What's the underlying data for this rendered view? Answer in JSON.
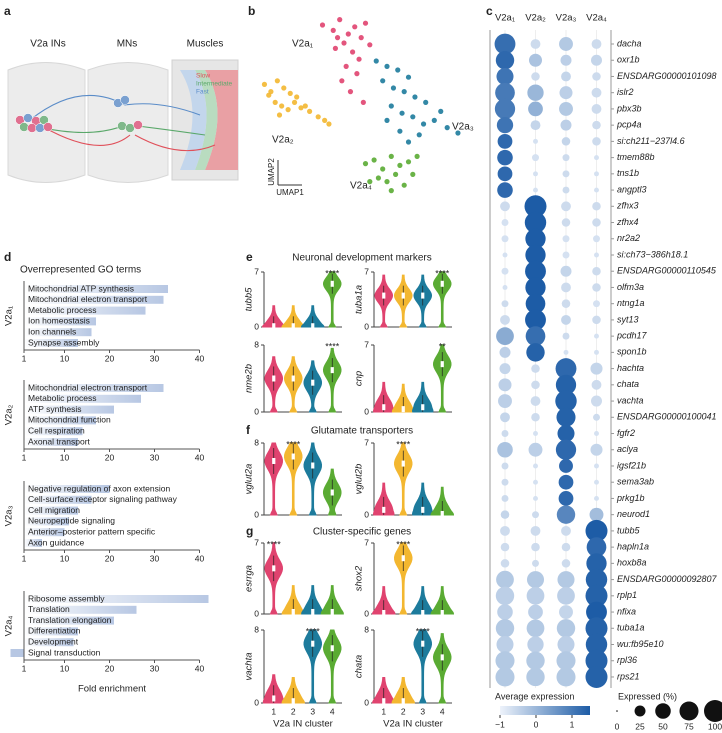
{
  "panel_letters": [
    "a",
    "b",
    "c",
    "d",
    "e",
    "f",
    "g"
  ],
  "schematic": {
    "labels": [
      "V2a INs",
      "MNs",
      "Muscles"
    ],
    "legend": [
      {
        "text": "Slow",
        "color": "#e0505a"
      },
      {
        "text": "Intermediate",
        "color": "#5aa86a"
      },
      {
        "text": "Fast",
        "color": "#5a8cc8"
      }
    ]
  },
  "violin_sections": [
    "Neuronal development markers",
    "Glutamate transporters",
    "Cluster-specific genes"
  ],
  "chart_data": [
    {
      "type": "scatter",
      "x_label": "UMAP1",
      "y_label": "UMAP2",
      "xlim": [
        0,
        100
      ],
      "ylim": [
        0,
        100
      ],
      "series": [
        {
          "name": "V2a₁",
          "color": "#e0436f",
          "x": [
            30,
            35,
            38,
            42,
            45,
            48,
            50,
            40,
            44,
            36,
            47,
            52,
            41,
            46,
            39,
            43,
            49,
            37
          ],
          "y": [
            95,
            92,
            98,
            90,
            94,
            88,
            96,
            85,
            80,
            82,
            76,
            84,
            72,
            68,
            64,
            58,
            52,
            88
          ]
        },
        {
          "name": "V2a₂",
          "color": "#f3b730",
          "x": [
            3,
            6,
            9,
            12,
            15,
            18,
            8,
            11,
            14,
            17,
            20,
            24,
            28,
            31,
            33,
            5,
            10,
            22
          ],
          "y": [
            62,
            58,
            64,
            60,
            57,
            55,
            52,
            50,
            48,
            52,
            49,
            47,
            44,
            42,
            40,
            56,
            45,
            50
          ]
        },
        {
          "name": "V2a₃",
          "color": "#1d7b9c",
          "x": [
            55,
            60,
            65,
            70,
            58,
            63,
            68,
            73,
            78,
            62,
            67,
            72,
            77,
            82,
            88,
            93,
            70,
            75,
            60,
            66,
            85
          ],
          "y": [
            75,
            72,
            70,
            66,
            64,
            60,
            58,
            55,
            52,
            50,
            46,
            44,
            40,
            42,
            38,
            35,
            30,
            34,
            42,
            36,
            47
          ]
        },
        {
          "name": "V2a₄",
          "color": "#5aab33",
          "x": [
            50,
            54,
            58,
            62,
            66,
            70,
            56,
            60,
            64,
            68,
            52,
            62,
            72,
            74
          ],
          "y": [
            18,
            20,
            15,
            22,
            17,
            19,
            10,
            8,
            12,
            6,
            8,
            3,
            12,
            22
          ]
        }
      ]
    },
    {
      "type": "dotplot",
      "color_label": "Average expression",
      "size_label": "Expressed (%)",
      "clim": [
        -1,
        1.5
      ],
      "cmap": [
        "#eef3fb",
        "#1d5ca6"
      ],
      "color_ticks": [
        {
          "value": -1,
          "label": "−1"
        },
        0,
        1
      ],
      "sizelim": [
        0,
        100
      ],
      "size_ticks": [
        0,
        25,
        50,
        75,
        100
      ],
      "categories": [
        "dacha",
        "oxr1b",
        "ENSDARG00000101098",
        "islr2",
        "pbx3b",
        "pcp4a",
        "si:ch211−237l4.6",
        "tmem88b",
        "tns1b",
        "angptl3",
        "zfhx3",
        "zfhx4",
        "nr2a2",
        "si:ch73−386h18.1",
        "ENSDARG00000110545",
        "olfm3a",
        "ntng1a",
        "syt13",
        "pcdh17",
        "spon1b",
        "hachta",
        "chata",
        "vachta",
        "ENSDARG00000100041",
        "fgfr2",
        "aclya",
        "igsf21b",
        "sema3ab",
        "prkg1b",
        "neurod1",
        "tubb5",
        "hapln1a",
        "hoxb8a",
        "ENSDARG00000092807",
        "rplp1",
        "nfixa",
        "tuba1a",
        "wu:fb95e10",
        "rpl36",
        "rps21"
      ],
      "series": [
        {
          "name": "V2a₁",
          "values": [
            1.2,
            1.3,
            1.1,
            1.0,
            1.0,
            1.1,
            1.3,
            1.3,
            1.3,
            1.3,
            -0.6,
            -0.7,
            -0.7,
            -0.7,
            -0.7,
            -0.7,
            -0.6,
            -0.6,
            0.2,
            -0.4,
            -0.5,
            -0.4,
            -0.4,
            -0.5,
            -0.6,
            -0.2,
            -0.6,
            -0.6,
            -0.6,
            -0.5,
            -0.6,
            -0.6,
            -0.6,
            -0.3,
            -0.4,
            -0.4,
            -0.3,
            -0.4,
            -0.3,
            -0.3
          ],
          "sizes": [
            90,
            70,
            60,
            80,
            85,
            55,
            45,
            50,
            45,
            50,
            20,
            10,
            10,
            5,
            10,
            5,
            10,
            20,
            65,
            25,
            25,
            35,
            40,
            20,
            10,
            50,
            10,
            10,
            10,
            15,
            20,
            15,
            15,
            65,
            70,
            50,
            70,
            60,
            75,
            75
          ]
        },
        {
          "name": "V2a₂",
          "values": [
            -0.6,
            -0.2,
            -0.6,
            0.0,
            0.1,
            -0.5,
            -0.7,
            -0.7,
            -0.7,
            -0.7,
            1.5,
            1.5,
            1.5,
            1.5,
            1.5,
            1.5,
            1.5,
            1.5,
            1.2,
            1.4,
            -0.6,
            -0.6,
            -0.6,
            -0.6,
            -0.7,
            -0.4,
            -0.7,
            -0.7,
            -0.7,
            -0.6,
            -0.6,
            -0.6,
            -0.6,
            -0.3,
            -0.4,
            -0.4,
            -0.3,
            -0.4,
            -0.3,
            -0.3
          ],
          "sizes": [
            20,
            35,
            15,
            55,
            45,
            20,
            5,
            10,
            5,
            5,
            100,
            95,
            85,
            85,
            90,
            85,
            80,
            90,
            80,
            70,
            15,
            15,
            20,
            15,
            5,
            40,
            5,
            5,
            5,
            10,
            20,
            15,
            10,
            60,
            65,
            45,
            65,
            55,
            70,
            70
          ]
        },
        {
          "name": "V2a₃",
          "values": [
            -0.3,
            -0.4,
            -0.5,
            -0.4,
            -0.3,
            -0.4,
            -0.5,
            -0.6,
            -0.6,
            -0.6,
            -0.6,
            -0.6,
            -0.7,
            -0.7,
            -0.5,
            -0.6,
            -0.6,
            -0.5,
            -0.6,
            -0.7,
            1.3,
            1.4,
            1.4,
            1.4,
            1.4,
            1.3,
            1.3,
            1.3,
            1.3,
            0.8,
            -0.6,
            -0.6,
            -0.6,
            -0.3,
            -0.4,
            -0.5,
            -0.3,
            -0.4,
            -0.3,
            -0.3
          ],
          "sizes": [
            40,
            25,
            20,
            35,
            40,
            25,
            15,
            10,
            10,
            10,
            20,
            15,
            10,
            10,
            25,
            20,
            15,
            20,
            10,
            5,
            90,
            85,
            95,
            75,
            60,
            85,
            40,
            45,
            45,
            70,
            20,
            15,
            15,
            60,
            65,
            40,
            70,
            60,
            75,
            75
          ]
        },
        {
          "name": "V2a₄",
          "values": [
            -0.6,
            -0.5,
            -0.6,
            -0.6,
            -0.6,
            -0.6,
            -0.6,
            -0.7,
            -0.7,
            -0.7,
            -0.6,
            -0.6,
            -0.7,
            -0.7,
            -0.6,
            -0.6,
            -0.7,
            -0.6,
            -0.7,
            -0.7,
            -0.5,
            -0.6,
            -0.6,
            -0.6,
            -0.7,
            -0.5,
            -0.7,
            -0.7,
            -0.7,
            -0.1,
            1.5,
            1.3,
            1.4,
            1.4,
            1.4,
            1.5,
            1.4,
            1.4,
            1.4,
            1.4
          ],
          "sizes": [
            20,
            25,
            15,
            20,
            20,
            15,
            15,
            5,
            5,
            5,
            15,
            15,
            10,
            5,
            15,
            15,
            10,
            15,
            5,
            5,
            30,
            20,
            25,
            10,
            5,
            30,
            5,
            5,
            5,
            40,
            100,
            80,
            85,
            95,
            100,
            90,
            100,
            95,
            100,
            100
          ]
        }
      ]
    },
    {
      "type": "hbar",
      "title": "Overrepresented GO terms",
      "y_label": "V2a₁",
      "color": "#b7c7e3",
      "xlim": [
        -3,
        43
      ],
      "baseline": 1,
      "xticks": [
        1,
        10,
        20,
        30,
        40
      ],
      "categories": [
        "Mitochondrial ATP synthesis",
        "Mitochondrial electron transport",
        "Metabolic process",
        "Ion homeostasis",
        "Ion channels",
        "Synapse assembly"
      ],
      "values": [
        33,
        32,
        28,
        17,
        16,
        13
      ]
    },
    {
      "type": "hbar",
      "y_label": "V2a₂",
      "color": "#b7c7e3",
      "xlim": [
        -3,
        43
      ],
      "baseline": 1,
      "xticks": [
        1,
        10,
        20,
        30,
        40
      ],
      "categories": [
        "Mitochondrial electron transport",
        "Metabolic process",
        "ATP synthesis",
        "Mitochondrial function",
        "Cell respiration",
        "Axonal transport"
      ],
      "values": [
        32,
        27,
        21,
        17,
        14,
        13
      ]
    },
    {
      "type": "hbar",
      "y_label": "V2a₃",
      "color": "#b7c7e3",
      "xlim": [
        -3,
        43
      ],
      "baseline": 1,
      "xticks": [
        1,
        10,
        20,
        30,
        40
      ],
      "categories": [
        "Negative regulation of axon extension",
        "Cell-surface receptor signaling pathway",
        "Cell migration",
        "Neuropeptide signaling",
        "Anterior–posterior pattern specific",
        "Axon guidance"
      ],
      "values": [
        20,
        16,
        13,
        11,
        10,
        5
      ]
    },
    {
      "type": "hbar",
      "y_label": "V2a₄",
      "x_label": "Fold enrichment",
      "color": "#b7c7e3",
      "xlim": [
        -3,
        43
      ],
      "baseline": 1,
      "xticks": [
        1,
        10,
        20,
        30,
        40
      ],
      "categories": [
        "Ribosome assembly",
        "Translation",
        "Translation elongation",
        "Differentiation",
        "Development",
        "Signal transduction"
      ],
      "values": [
        42,
        26,
        21,
        13,
        12,
        -2
      ]
    },
    {
      "type": "violin",
      "y_label": "tubb5",
      "ylim": [
        0,
        7
      ],
      "yticks": [
        0,
        7
      ],
      "colors": [
        "#e0436f",
        "#f3b730",
        "#1d7b9c",
        "#5aab33"
      ],
      "values": [
        0.1,
        0.1,
        0.1,
        5.5
      ],
      "annotations": [
        null,
        null,
        null,
        "****"
      ]
    },
    {
      "type": "violin",
      "y_label": "tuba1a",
      "ylim": [
        0,
        7
      ],
      "yticks": [
        0,
        7
      ],
      "colors": [
        "#e0436f",
        "#f3b730",
        "#1d7b9c",
        "#5aab33"
      ],
      "values": [
        4,
        4,
        4,
        5.5
      ],
      "annotations": [
        null,
        null,
        null,
        "****"
      ]
    },
    {
      "type": "violin",
      "y_label": "nme2b",
      "ylim": [
        0,
        8
      ],
      "yticks": [
        0,
        8
      ],
      "colors": [
        "#e0436f",
        "#f3b730",
        "#1d7b9c",
        "#5aab33"
      ],
      "values": [
        4,
        4,
        3.5,
        5
      ],
      "annotations": [
        null,
        null,
        null,
        "****"
      ]
    },
    {
      "type": "violin",
      "y_label": "cnp",
      "ylim": [
        0,
        7
      ],
      "yticks": [
        0,
        7
      ],
      "colors": [
        "#e0436f",
        "#f3b730",
        "#1d7b9c",
        "#5aab33"
      ],
      "values": [
        0.5,
        0.3,
        0.5,
        5
      ],
      "annotations": [
        null,
        null,
        null,
        "**"
      ]
    },
    {
      "type": "violin",
      "y_label": "vglut2a",
      "ylim": [
        0,
        8
      ],
      "yticks": [
        0,
        8
      ],
      "colors": [
        "#e0436f",
        "#f3b730",
        "#1d7b9c",
        "#5aab33"
      ],
      "values": [
        6,
        6.5,
        5.5,
        2.5
      ],
      "annotations": [
        null,
        "****",
        null,
        null
      ]
    },
    {
      "type": "violin",
      "y_label": "vglut2b",
      "ylim": [
        0,
        7
      ],
      "yticks": [
        0,
        7
      ],
      "colors": [
        "#e0436f",
        "#f3b730",
        "#1d7b9c",
        "#5aab33"
      ],
      "values": [
        0.5,
        5,
        0.5,
        0.1
      ],
      "annotations": [
        null,
        "****",
        null,
        null
      ]
    },
    {
      "type": "violin",
      "y_label": "esrrga",
      "ylim": [
        0,
        7
      ],
      "yticks": [
        0,
        7
      ],
      "colors": [
        "#e0436f",
        "#f3b730",
        "#1d7b9c",
        "#5aab33"
      ],
      "values": [
        4.5,
        0.2,
        0.2,
        0.2
      ],
      "annotations": [
        "****",
        null,
        null,
        null
      ]
    },
    {
      "type": "violin",
      "y_label": "shox2",
      "ylim": [
        0,
        7
      ],
      "yticks": [
        0,
        7
      ],
      "colors": [
        "#e0436f",
        "#f3b730",
        "#1d7b9c",
        "#5aab33"
      ],
      "values": [
        0.1,
        5.5,
        0.1,
        0.1
      ],
      "annotations": [
        null,
        "****",
        null,
        null
      ]
    },
    {
      "type": "violin",
      "y_label": "vachta",
      "x_label": "V2a IN cluster",
      "categories": [
        "1",
        "2",
        "3",
        "4"
      ],
      "ylim": [
        0,
        8
      ],
      "yticks": [
        0,
        8
      ],
      "colors": [
        "#e0436f",
        "#f3b730",
        "#1d7b9c",
        "#5aab33"
      ],
      "values": [
        0.5,
        0.2,
        6.5,
        6
      ],
      "annotations": [
        null,
        null,
        "****",
        null
      ]
    },
    {
      "type": "violin",
      "y_label": "chata",
      "x_label": "V2a IN cluster",
      "categories": [
        "1",
        "2",
        "3",
        "4"
      ],
      "ylim": [
        0,
        8
      ],
      "yticks": [
        0,
        8
      ],
      "colors": [
        "#e0436f",
        "#f3b730",
        "#1d7b9c",
        "#5aab33"
      ],
      "values": [
        0.2,
        0.2,
        6.5,
        5
      ],
      "annotations": [
        null,
        null,
        "****",
        null
      ]
    }
  ]
}
